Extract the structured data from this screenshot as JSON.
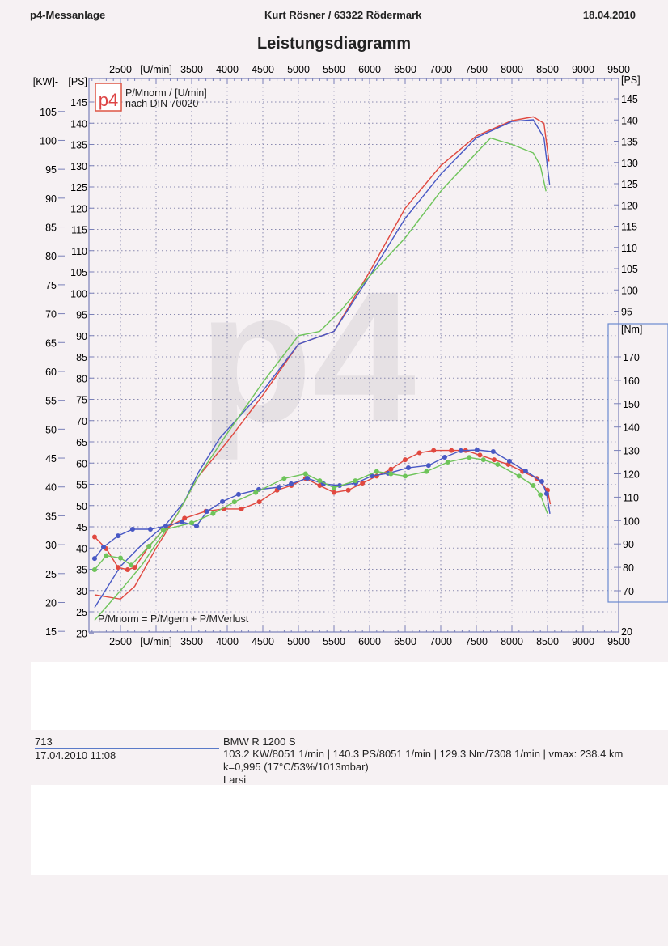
{
  "header": {
    "left": "p4-Messanlage",
    "center": "Kurt Rösner  /  63322 Rödermark",
    "right": "18.04.2010",
    "title": "Leistungsdiagramm"
  },
  "legend": {
    "logo": "p4",
    "line1": "P/Mnorm / [U/min]",
    "line2": "nach DIN 70020",
    "formula": "P/Mnorm = P/Mgem + P/MVerlust"
  },
  "footer": {
    "id": "713",
    "datetime": "17.04.2010  11:08",
    "vehicle": "BMW R 1200 S",
    "results": "103.2 KW/8051 1/min  |  140.3 PS/8051 1/min  |  129.3 Nm/7308 1/min | vmax: 238.4 km",
    "conditions": "k=0,995 (17°C/53%/1013mbar)",
    "driver": "Larsi"
  },
  "colors": {
    "red": "#e0483f",
    "blue": "#4858c4",
    "green": "#6ec45a",
    "grid": "#8a8ab0"
  },
  "chart_data": {
    "type": "line",
    "title": "Leistungsdiagramm",
    "x_unit_label": "[U/min]",
    "x_ticks": [
      2500,
      3500,
      4000,
      4500,
      5000,
      5500,
      6000,
      6500,
      7000,
      7500,
      8000,
      8500,
      9000,
      9500
    ],
    "xlim": [
      2090,
      9500
    ],
    "left_kw_label": "[KW]",
    "left_kw_ticks": [
      105,
      100,
      95,
      90,
      85,
      80,
      75,
      70,
      65,
      60,
      55,
      50,
      45,
      40,
      35,
      30,
      25,
      20,
      15
    ],
    "left_ps_label": "[PS]",
    "ps_ticks": [
      145,
      140,
      135,
      130,
      125,
      120,
      115,
      110,
      105,
      100,
      95,
      90,
      85,
      80,
      75,
      70,
      65,
      60,
      55,
      50,
      45,
      40,
      35,
      30,
      25,
      20
    ],
    "ps_lim": [
      20,
      150
    ],
    "right_ps_label": "[PS]",
    "right_ps_ticks": [
      145,
      140,
      135,
      130,
      125,
      120,
      115,
      110,
      105,
      100,
      95
    ],
    "nm_label": "[Nm]",
    "nm_ticks": [
      170,
      160,
      150,
      140,
      130,
      120,
      110,
      100,
      90,
      80,
      70
    ],
    "right_bottom_tick": "20",
    "grid": true,
    "power_series": [
      {
        "color": "red",
        "points": [
          [
            2136,
            29
          ],
          [
            2500,
            28
          ],
          [
            2700,
            31
          ],
          [
            3000,
            40
          ],
          [
            3300,
            48
          ],
          [
            3600,
            57
          ],
          [
            4000,
            65
          ],
          [
            4500,
            76
          ],
          [
            5000,
            88
          ],
          [
            5500,
            91
          ],
          [
            6000,
            105
          ],
          [
            6500,
            120
          ],
          [
            7000,
            130
          ],
          [
            7500,
            137
          ],
          [
            8000,
            140.6
          ],
          [
            8300,
            141.5
          ],
          [
            8450,
            140
          ],
          [
            8520,
            131
          ]
        ]
      },
      {
        "color": "blue",
        "points": [
          [
            2136,
            26
          ],
          [
            2500,
            35.7
          ],
          [
            2800,
            40.8
          ],
          [
            3150,
            45.8
          ],
          [
            3400,
            51
          ],
          [
            3600,
            58
          ],
          [
            3900,
            66
          ],
          [
            4500,
            77
          ],
          [
            5000,
            88
          ],
          [
            5500,
            91
          ],
          [
            6000,
            104
          ],
          [
            6500,
            117.6
          ],
          [
            7000,
            128
          ],
          [
            7500,
            136.6
          ],
          [
            8000,
            140.4
          ],
          [
            8300,
            140.8
          ],
          [
            8450,
            136.6
          ],
          [
            8530,
            125.6
          ]
        ]
      },
      {
        "color": "green",
        "points": [
          [
            2136,
            23
          ],
          [
            2500,
            30
          ],
          [
            2800,
            36
          ],
          [
            3000,
            41
          ],
          [
            3300,
            48
          ],
          [
            3600,
            57
          ],
          [
            4000,
            67
          ],
          [
            4500,
            79
          ],
          [
            5000,
            90
          ],
          [
            5300,
            91
          ],
          [
            5600,
            96
          ],
          [
            6000,
            104
          ],
          [
            6500,
            113
          ],
          [
            7000,
            124
          ],
          [
            7500,
            133
          ],
          [
            7700,
            136.5
          ],
          [
            8000,
            135
          ],
          [
            8300,
            133
          ],
          [
            8400,
            130
          ],
          [
            8480,
            124
          ]
        ]
      }
    ],
    "torque_series": [
      {
        "color": "red",
        "points": [
          [
            2136,
            93
          ],
          [
            2300,
            88
          ],
          [
            2466,
            80
          ],
          [
            2600,
            79
          ],
          [
            2700,
            80
          ],
          [
            2900,
            89
          ],
          [
            3100,
            96
          ],
          [
            3400,
            101
          ],
          [
            3700,
            104
          ],
          [
            3950,
            105
          ],
          [
            4200,
            105
          ],
          [
            4450,
            108
          ],
          [
            4700,
            113
          ],
          [
            4900,
            115
          ],
          [
            5100,
            118
          ],
          [
            5300,
            115
          ],
          [
            5500,
            112
          ],
          [
            5700,
            113
          ],
          [
            5900,
            116
          ],
          [
            6100,
            119
          ],
          [
            6300,
            122
          ],
          [
            6500,
            126
          ],
          [
            6700,
            129
          ],
          [
            6900,
            130
          ],
          [
            7150,
            130
          ],
          [
            7350,
            130
          ],
          [
            7550,
            128
          ],
          [
            7750,
            126
          ],
          [
            7950,
            124
          ],
          [
            8150,
            121
          ],
          [
            8350,
            118
          ],
          [
            8500,
            113
          ],
          [
            8540,
            107
          ]
        ]
      },
      {
        "color": "blue",
        "points": [
          [
            2136,
            83.8
          ],
          [
            2261,
            88.7
          ],
          [
            2466,
            93.5
          ],
          [
            2670,
            96.3
          ],
          [
            2920,
            96.3
          ],
          [
            3136,
            97.7
          ],
          [
            3364,
            99.4
          ],
          [
            3568,
            97.7
          ],
          [
            3716,
            103.9
          ],
          [
            3932,
            108.1
          ],
          [
            4159,
            111.2
          ],
          [
            4443,
            113.3
          ],
          [
            4727,
            114.3
          ],
          [
            4898,
            115.7
          ],
          [
            5125,
            118.1
          ],
          [
            5352,
            115.7
          ],
          [
            5580,
            115
          ],
          [
            5806,
            116
          ],
          [
            6034,
            119.1
          ],
          [
            6261,
            120.2
          ],
          [
            6545,
            122.6
          ],
          [
            6828,
            123.6
          ],
          [
            7056,
            127.1
          ],
          [
            7283,
            129.9
          ],
          [
            7510,
            130.2
          ],
          [
            7737,
            129.5
          ],
          [
            7965,
            125.4
          ],
          [
            8192,
            121.2
          ],
          [
            8420,
            116.7
          ],
          [
            8488,
            111.5
          ],
          [
            8534,
            102.9
          ]
        ]
      },
      {
        "color": "green",
        "points": [
          [
            2136,
            79
          ],
          [
            2300,
            85
          ],
          [
            2500,
            84
          ],
          [
            2650,
            81
          ],
          [
            2900,
            89
          ],
          [
            3100,
            96
          ],
          [
            3500,
            99
          ],
          [
            3800,
            103
          ],
          [
            4100,
            108
          ],
          [
            4400,
            112
          ],
          [
            4800,
            118
          ],
          [
            5100,
            120
          ],
          [
            5300,
            117
          ],
          [
            5500,
            114
          ],
          [
            5800,
            117
          ],
          [
            6100,
            121
          ],
          [
            6300,
            120
          ],
          [
            6500,
            119
          ],
          [
            6800,
            121
          ],
          [
            7100,
            125
          ],
          [
            7400,
            127
          ],
          [
            7600,
            126
          ],
          [
            7800,
            124
          ],
          [
            8100,
            119
          ],
          [
            8300,
            115
          ],
          [
            8400,
            111
          ],
          [
            8500,
            103
          ]
        ]
      }
    ]
  }
}
